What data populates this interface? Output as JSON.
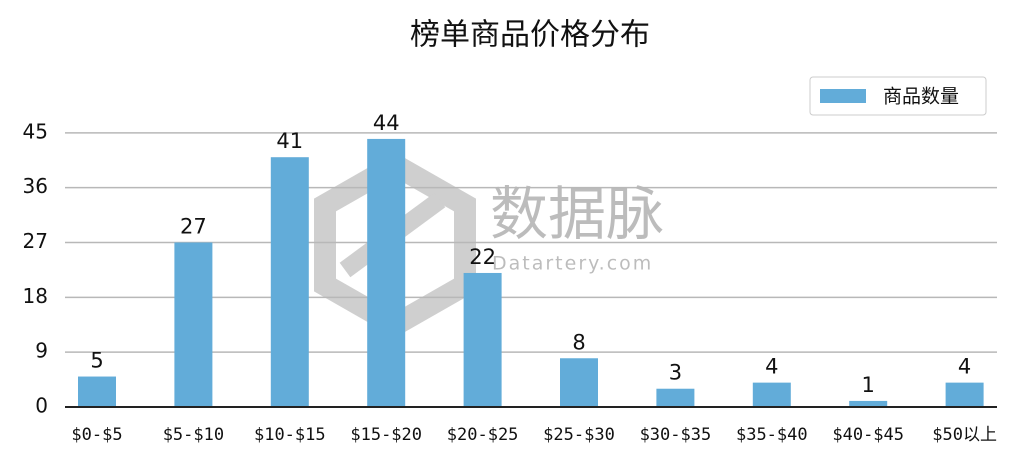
{
  "chart_data": {
    "type": "bar",
    "title": "榜单商品价格分布",
    "categories": [
      "$0-$5",
      "$5-$10",
      "$10-$15",
      "$15-$20",
      "$20-$25",
      "$25-$30",
      "$30-$35",
      "$35-$40",
      "$40-$45",
      "$50以上"
    ],
    "series": [
      {
        "name": "商品数量",
        "color": "#62acd9",
        "values": [
          5,
          27,
          41,
          44,
          22,
          8,
          3,
          4,
          1,
          4
        ]
      }
    ],
    "ylim": [
      0,
      54
    ],
    "yticks": [
      0,
      9,
      18,
      27,
      36,
      45
    ],
    "grid": true,
    "legend": "upper right"
  },
  "watermark": {
    "text": "数据脉",
    "subtext": "Datartery.com"
  }
}
